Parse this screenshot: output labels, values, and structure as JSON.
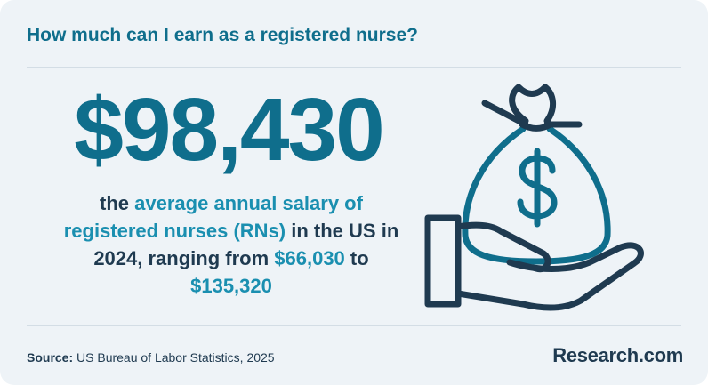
{
  "header": {
    "title": "How much can I earn as a registered nurse?"
  },
  "stat": {
    "value": "$98,430"
  },
  "description": {
    "p1": "the ",
    "h1": "average annual salary of registered nurses (RNs)",
    "p2": " in the US in 2024, ranging from ",
    "h2": "$66,030",
    "p3": " to ",
    "h3": "$135,320"
  },
  "footer": {
    "source_label": "Source:",
    "source_text": " US Bureau of Labor Statistics, 2025",
    "brand": "Research.com"
  },
  "colors": {
    "background": "#eef3f7",
    "accent": "#0f6e8c",
    "highlight": "#1a8fb0",
    "text": "#1f3a50",
    "icon_stroke": "#1f3a50",
    "icon_accent": "#0f6e8c"
  },
  "icons": {
    "illustration": "hand-holding-money-bag-icon"
  }
}
